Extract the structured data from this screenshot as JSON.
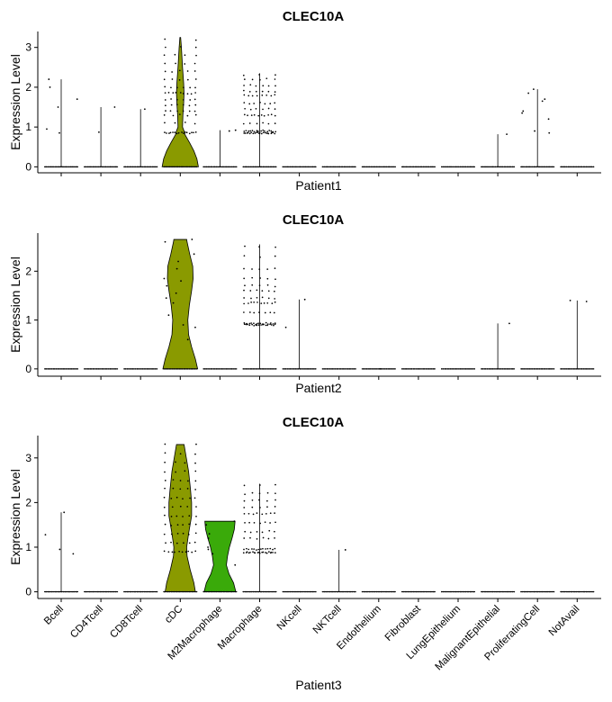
{
  "chart_data": [
    {
      "type": "violin",
      "title": "CLEC10A",
      "xlabel": "Patient1",
      "ylabel": "Expression Level",
      "ylim": [
        -0.15,
        3.4
      ],
      "yticks": [
        0,
        1,
        2,
        3
      ],
      "categories": [
        "Bcell",
        "CD4Tcell",
        "CD8Tcell",
        "cDC",
        "M2Macrophage",
        "Macrophage",
        "NKcell",
        "NKTcell",
        "Endothelium",
        "Fibroblast",
        "LungEpithelium",
        "MalignantEpithelial",
        "ProliferatingCell",
        "NotAvail"
      ],
      "max_values": [
        2.2,
        1.5,
        1.45,
        3.25,
        0.92,
        2.35,
        0,
        0,
        0,
        0,
        0,
        0.82,
        1.95,
        0
      ],
      "violins": [
        {
          "category": "cDC",
          "color": "#8a9a00",
          "profile": [
            [
              0,
              0.48
            ],
            [
              0.2,
              0.44
            ],
            [
              0.4,
              0.36
            ],
            [
              0.6,
              0.25
            ],
            [
              0.8,
              0.13
            ],
            [
              0.9,
              0.1
            ],
            [
              1.0,
              0.06
            ],
            [
              1.3,
              0.07
            ],
            [
              1.6,
              0.09
            ],
            [
              1.85,
              0.1
            ],
            [
              2.1,
              0.09
            ],
            [
              2.5,
              0.06
            ],
            [
              3.0,
              0.03
            ],
            [
              3.25,
              0.01
            ]
          ]
        }
      ],
      "points": [
        {
          "category": "Bcell",
          "y": 2.2
        },
        {
          "category": "Bcell",
          "y": 2.0
        },
        {
          "category": "Bcell",
          "y": 1.7
        },
        {
          "category": "Bcell",
          "y": 1.5
        },
        {
          "category": "Bcell",
          "y": 0.85
        },
        {
          "category": "Bcell",
          "y": 0.95
        },
        {
          "category": "CD4Tcell",
          "y": 1.5
        },
        {
          "category": "CD4Tcell",
          "y": 0.87
        },
        {
          "category": "CD8Tcell",
          "y": 1.45
        },
        {
          "category": "M2Macrophage",
          "y": 0.92
        },
        {
          "category": "M2Macrophage",
          "y": 0.9
        },
        {
          "category": "MalignantEpithelial",
          "y": 0.82
        },
        {
          "category": "ProliferatingCell",
          "y": 1.95
        },
        {
          "category": "ProliferatingCell",
          "y": 1.85
        },
        {
          "category": "ProliferatingCell",
          "y": 1.7
        },
        {
          "category": "ProliferatingCell",
          "y": 1.4
        },
        {
          "category": "ProliferatingCell",
          "y": 1.35
        },
        {
          "category": "ProliferatingCell",
          "y": 1.2
        },
        {
          "category": "ProliferatingCell",
          "y": 0.9
        },
        {
          "category": "ProliferatingCell",
          "y": 0.85
        },
        {
          "category": "ProliferatingCell",
          "y": 1.65
        }
      ],
      "point_bands": [
        {
          "category": "cDC",
          "levels": [
            0.85,
            1.1,
            1.3,
            1.4,
            1.55,
            1.7,
            1.85,
            2.0,
            2.2,
            2.4,
            2.6,
            2.8,
            3.0,
            3.2
          ],
          "counts": [
            16,
            4,
            5,
            6,
            6,
            6,
            9,
            6,
            5,
            5,
            4,
            4,
            3,
            2
          ]
        },
        {
          "category": "Macrophage",
          "levels": [
            0.85,
            0.9,
            1.1,
            1.3,
            1.45,
            1.6,
            1.8,
            1.9,
            2.05,
            2.2,
            2.3
          ],
          "counts": [
            22,
            16,
            6,
            10,
            6,
            7,
            8,
            6,
            6,
            5,
            3
          ]
        }
      ]
    },
    {
      "type": "violin",
      "title": "CLEC10A",
      "xlabel": "Patient2",
      "ylabel": "Expression Level",
      "ylim": [
        -0.15,
        2.78
      ],
      "yticks": [
        0,
        1,
        2
      ],
      "categories": [
        "Bcell",
        "CD4Tcell",
        "CD8Tcell",
        "cDC",
        "M2Macrophage",
        "Macrophage",
        "NKcell",
        "NKTcell",
        "Endothelium",
        "Fibroblast",
        "LungEpithelium",
        "MalignantEpithelial",
        "ProliferatingCell",
        "NotAvail"
      ],
      "max_values": [
        0,
        0,
        0,
        2.65,
        0,
        2.55,
        1.42,
        0,
        0,
        0,
        0,
        0.93,
        0,
        1.4
      ],
      "violins": [
        {
          "category": "cDC",
          "color": "#8a9a00",
          "profile": [
            [
              0,
              0.46
            ],
            [
              0.2,
              0.4
            ],
            [
              0.45,
              0.3
            ],
            [
              0.7,
              0.22
            ],
            [
              1.0,
              0.2
            ],
            [
              1.3,
              0.24
            ],
            [
              1.6,
              0.3
            ],
            [
              1.85,
              0.34
            ],
            [
              2.1,
              0.33
            ],
            [
              2.35,
              0.25
            ],
            [
              2.6,
              0.18
            ],
            [
              2.65,
              0.17
            ]
          ]
        }
      ],
      "points": [
        {
          "category": "cDC",
          "y": 2.65
        },
        {
          "category": "cDC",
          "y": 2.6
        },
        {
          "category": "cDC",
          "y": 2.35
        },
        {
          "category": "cDC",
          "y": 2.2
        },
        {
          "category": "cDC",
          "y": 2.05
        },
        {
          "category": "cDC",
          "y": 1.85
        },
        {
          "category": "cDC",
          "y": 1.8
        },
        {
          "category": "cDC",
          "y": 1.7
        },
        {
          "category": "cDC",
          "y": 1.55
        },
        {
          "category": "cDC",
          "y": 1.45
        },
        {
          "category": "cDC",
          "y": 1.1
        },
        {
          "category": "cDC",
          "y": 0.9
        },
        {
          "category": "cDC",
          "y": 0.85
        },
        {
          "category": "cDC",
          "y": 0.6
        },
        {
          "category": "cDC",
          "y": 1.35
        },
        {
          "category": "NKcell",
          "y": 1.42
        },
        {
          "category": "NKcell",
          "y": 0.85
        },
        {
          "category": "Endothelium",
          "y": 0.0
        },
        {
          "category": "MalignantEpithelial",
          "y": 0.93
        },
        {
          "category": "NotAvail",
          "y": 1.4
        },
        {
          "category": "NotAvail",
          "y": 1.38
        }
      ],
      "point_bands": [
        {
          "category": "Macrophage",
          "levels": [
            0.9,
            0.93,
            1.15,
            1.35,
            1.45,
            1.6,
            1.7,
            1.85,
            2.05,
            2.3,
            2.5
          ],
          "counts": [
            18,
            14,
            7,
            10,
            6,
            6,
            5,
            5,
            5,
            3,
            3
          ]
        }
      ]
    },
    {
      "type": "violin",
      "title": "CLEC10A",
      "xlabel": "Patient3",
      "ylabel": "Expression Level",
      "ylim": [
        -0.15,
        3.5
      ],
      "yticks": [
        0,
        1,
        2,
        3
      ],
      "categories": [
        "Bcell",
        "CD4Tcell",
        "CD8Tcell",
        "cDC",
        "M2Macrophage",
        "Macrophage",
        "NKcell",
        "NKTcell",
        "Endothelium",
        "Fibroblast",
        "LungEpithelium",
        "MalignantEpithelial",
        "ProliferatingCell",
        "NotAvail"
      ],
      "max_values": [
        1.78,
        0,
        0,
        3.3,
        1.58,
        2.42,
        0,
        0.94,
        0,
        0,
        0,
        0,
        0,
        0
      ],
      "violins": [
        {
          "category": "cDC",
          "color": "#8a9a00",
          "profile": [
            [
              0,
              0.4
            ],
            [
              0.2,
              0.36
            ],
            [
              0.5,
              0.26
            ],
            [
              0.8,
              0.18
            ],
            [
              1.0,
              0.17
            ],
            [
              1.3,
              0.22
            ],
            [
              1.7,
              0.3
            ],
            [
              2.0,
              0.3
            ],
            [
              2.3,
              0.27
            ],
            [
              2.7,
              0.22
            ],
            [
              3.0,
              0.16
            ],
            [
              3.3,
              0.1
            ]
          ]
        },
        {
          "category": "M2Macrophage",
          "color": "#3aaa0a",
          "profile": [
            [
              0,
              0.42
            ],
            [
              0.2,
              0.36
            ],
            [
              0.4,
              0.24
            ],
            [
              0.6,
              0.17
            ],
            [
              0.8,
              0.2
            ],
            [
              1.0,
              0.25
            ],
            [
              1.2,
              0.32
            ],
            [
              1.4,
              0.38
            ],
            [
              1.58,
              0.4
            ]
          ]
        }
      ],
      "points": [
        {
          "category": "Bcell",
          "y": 1.78
        },
        {
          "category": "Bcell",
          "y": 1.28
        },
        {
          "category": "Bcell",
          "y": 0.95
        },
        {
          "category": "Bcell",
          "y": 0.85
        },
        {
          "category": "M2Macrophage",
          "y": 1.58
        },
        {
          "category": "M2Macrophage",
          "y": 1.5
        },
        {
          "category": "M2Macrophage",
          "y": 1.3
        },
        {
          "category": "M2Macrophage",
          "y": 1.2
        },
        {
          "category": "M2Macrophage",
          "y": 1.0
        },
        {
          "category": "M2Macrophage",
          "y": 0.95
        },
        {
          "category": "M2Macrophage",
          "y": 0.85
        },
        {
          "category": "M2Macrophage",
          "y": 0.6
        },
        {
          "category": "NKTcell",
          "y": 0.94
        }
      ],
      "point_bands": [
        {
          "category": "cDC",
          "levels": [
            0.9,
            1.1,
            1.3,
            1.5,
            1.7,
            1.9,
            2.1,
            2.3,
            2.5,
            2.7,
            2.9,
            3.1,
            3.3
          ],
          "counts": [
            10,
            6,
            6,
            6,
            6,
            5,
            6,
            5,
            5,
            4,
            4,
            3,
            2
          ]
        },
        {
          "category": "Macrophage",
          "levels": [
            0.88,
            0.95,
            1.2,
            1.35,
            1.55,
            1.75,
            1.9,
            2.05,
            2.2,
            2.4
          ],
          "counts": [
            20,
            14,
            6,
            6,
            7,
            8,
            5,
            5,
            5,
            3
          ]
        }
      ]
    }
  ]
}
